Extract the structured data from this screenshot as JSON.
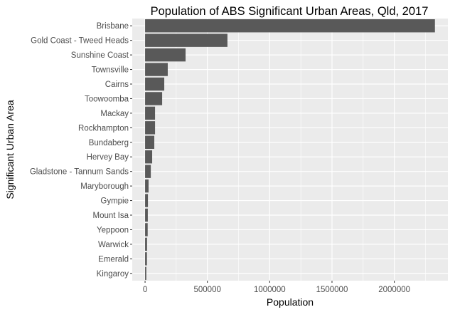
{
  "chart_data": {
    "type": "bar",
    "orientation": "horizontal",
    "title": "Population of ABS Significant Urban Areas, Qld, 2017",
    "xlabel": "Population",
    "ylabel": "Significant Urban Area",
    "categories": [
      "Brisbane",
      "Gold Coast - Tweed Heads",
      "Sunshine Coast",
      "Townsville",
      "Cairns",
      "Toowoomba",
      "Mackay",
      "Rockhampton",
      "Bundaberg",
      "Hervey Bay",
      "Gladstone - Tannum Sands",
      "Maryborough",
      "Gympie",
      "Mount Isa",
      "Yeppoon",
      "Warwick",
      "Emerald",
      "Kingaroy"
    ],
    "values": [
      2326000,
      661000,
      325000,
      182000,
      154000,
      137000,
      80000,
      80000,
      74000,
      57000,
      46000,
      28000,
      23000,
      22000,
      21000,
      16000,
      15000,
      10000
    ],
    "xlim": [
      -103000,
      2430000
    ],
    "xticks": [
      0,
      500000,
      1000000,
      1500000,
      2000000
    ],
    "xtick_labels": [
      "0",
      "500000",
      "1000000",
      "1500000",
      "2000000"
    ],
    "grid": true,
    "colors": {
      "bar": "#595959",
      "panel": "#ebebeb",
      "grid": "#ffffff"
    }
  }
}
